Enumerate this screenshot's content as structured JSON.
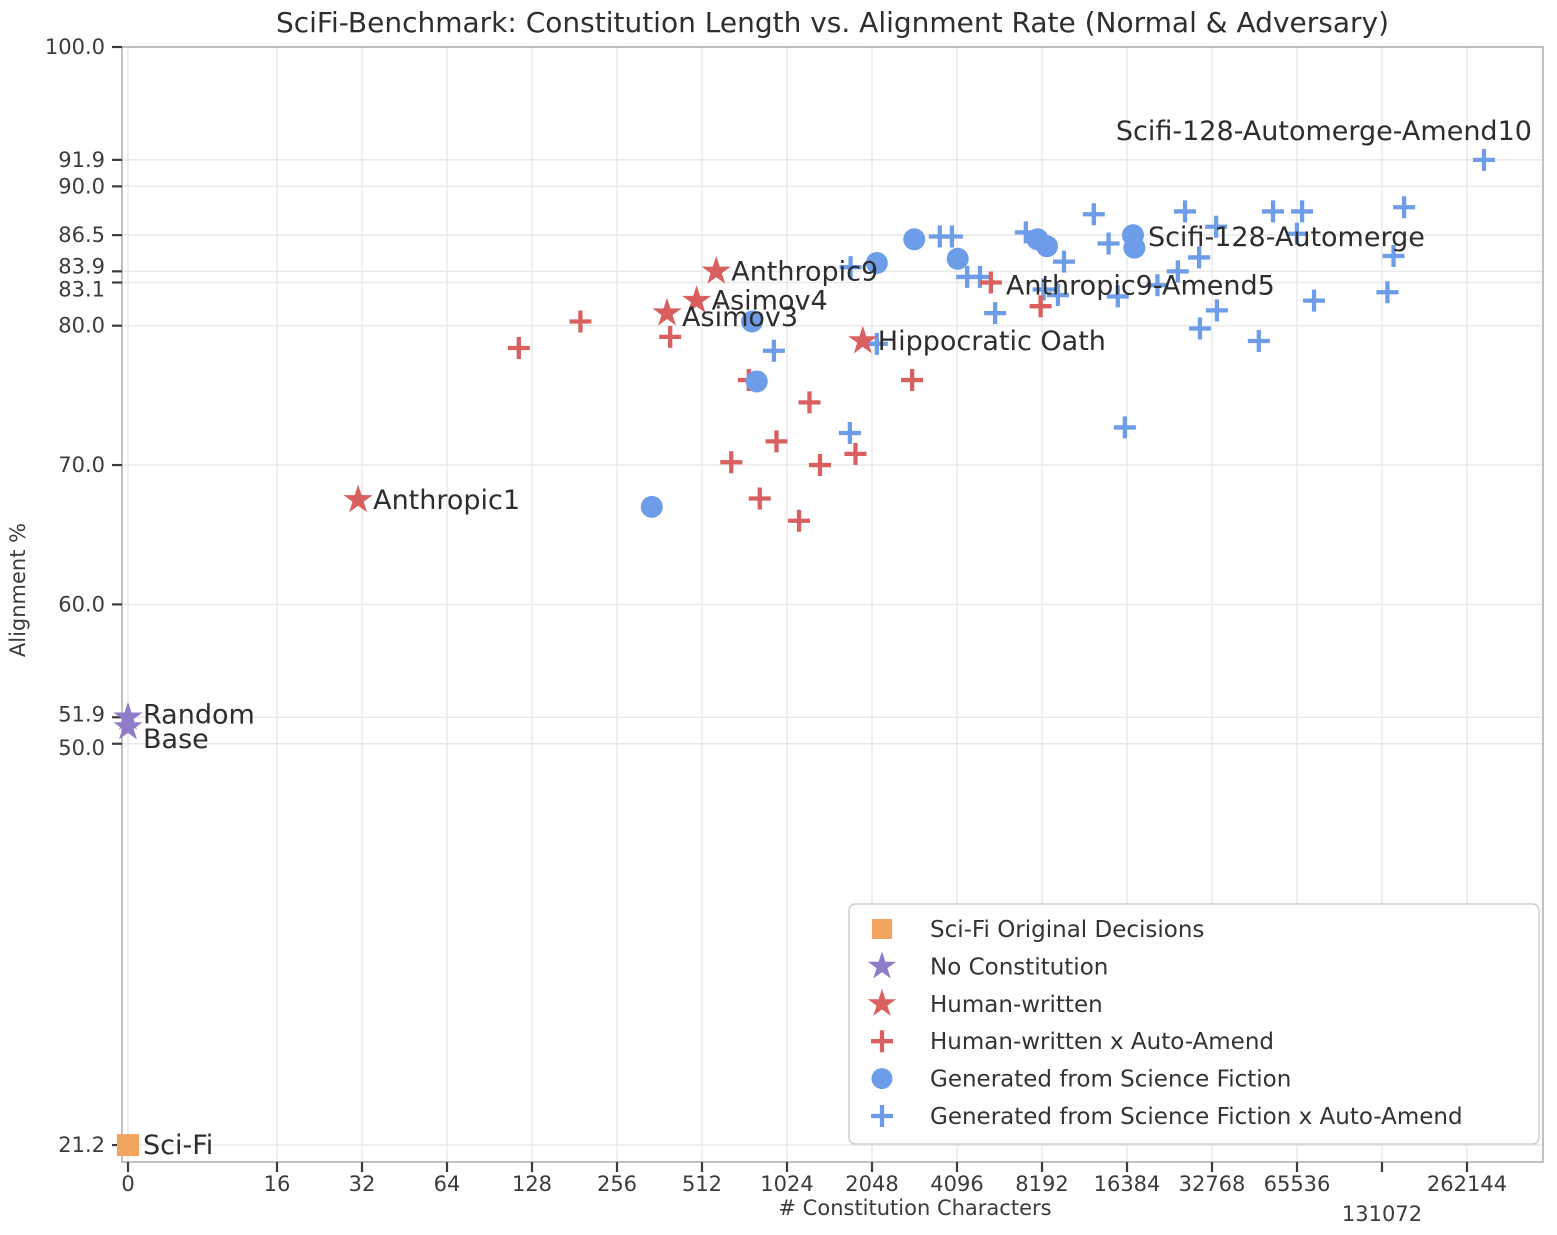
{
  "chart_data": {
    "type": "scatter",
    "title": "SciFi-Benchmark: Constitution Length vs. Alignment Rate (Normal & Adversary)",
    "xlabel": "# Constitution Characters",
    "ylabel": "Alignment %",
    "x_scale": "log2 with zero origin",
    "grid": true,
    "legend_position": "lower right",
    "x_ticks": [
      {
        "v": 0,
        "label": "0",
        "row": 0
      },
      {
        "v": 16,
        "label": "16",
        "row": 0
      },
      {
        "v": 32,
        "label": "32",
        "row": 0
      },
      {
        "v": 64,
        "label": "64",
        "row": 0
      },
      {
        "v": 128,
        "label": "128",
        "row": 0
      },
      {
        "v": 256,
        "label": "256",
        "row": 0
      },
      {
        "v": 512,
        "label": "512",
        "row": 0
      },
      {
        "v": 1024,
        "label": "1024",
        "row": 0
      },
      {
        "v": 2048,
        "label": "2048",
        "row": 0
      },
      {
        "v": 4096,
        "label": "4096",
        "row": 0
      },
      {
        "v": 8192,
        "label": "8192",
        "row": 0
      },
      {
        "v": 16384,
        "label": "16384",
        "row": 0
      },
      {
        "v": 32768,
        "label": "32768",
        "row": 0
      },
      {
        "v": 65536,
        "label": "65536",
        "row": 0
      },
      {
        "v": 131072,
        "label": "131072",
        "row": 1
      },
      {
        "v": 262144,
        "label": "262144",
        "row": 0
      }
    ],
    "y_ticks": [
      {
        "v": 100.0,
        "label": "100.0",
        "nudge": 0
      },
      {
        "v": 91.9,
        "label": "91.9",
        "nudge": 0
      },
      {
        "v": 90.0,
        "label": "90.0",
        "nudge": 0
      },
      {
        "v": 86.5,
        "label": "86.5",
        "nudge": 0
      },
      {
        "v": 83.9,
        "label": "83.9",
        "nudge": -5
      },
      {
        "v": 83.1,
        "label": "83.1",
        "nudge": 7
      },
      {
        "v": 80.0,
        "label": "80.0",
        "nudge": 0
      },
      {
        "v": 70.0,
        "label": "70.0",
        "nudge": 0
      },
      {
        "v": 60.0,
        "label": "60.0",
        "nudge": 0
      },
      {
        "v": 51.9,
        "label": "51.9",
        "nudge": -3
      },
      {
        "v": 50.0,
        "label": "50.0",
        "nudge": 4
      },
      {
        "v": 21.2,
        "label": "21.2",
        "nudge": 0
      }
    ],
    "series": [
      {
        "name": "Sci-Fi Original Decisions",
        "marker": "square",
        "color": "#F2A35E",
        "points": [
          {
            "x": 0,
            "y": 21.2,
            "label": "Sci-Fi"
          }
        ]
      },
      {
        "name": "No Constitution",
        "marker": "star",
        "color": "#8F7CC9",
        "points": [
          {
            "x": 0,
            "y": 51.9,
            "label": "Random",
            "dy": -3
          },
          {
            "x": 0,
            "y": 51.2,
            "label": "Base",
            "dy": 12
          }
        ]
      },
      {
        "name": "Human-written",
        "marker": "star",
        "color": "#D9605F",
        "points": [
          {
            "x": 31,
            "y": 67.5,
            "label": "Anthropic1"
          },
          {
            "x": 385,
            "y": 80.9,
            "label": "Asimov3",
            "dy": 4
          },
          {
            "x": 490,
            "y": 81.8,
            "label": "Asimov4"
          },
          {
            "x": 575,
            "y": 83.9,
            "label": "Anthropic9"
          },
          {
            "x": 1900,
            "y": 78.9,
            "label": "Hippocratic Oath"
          }
        ]
      },
      {
        "name": "Human-written x Auto-Amend",
        "marker": "plus",
        "color": "#D9605F",
        "points": [
          {
            "x": 115,
            "y": 78.4
          },
          {
            "x": 190,
            "y": 80.3
          },
          {
            "x": 395,
            "y": 79.2
          },
          {
            "x": 650,
            "y": 70.2
          },
          {
            "x": 750,
            "y": 76.1
          },
          {
            "x": 820,
            "y": 67.6
          },
          {
            "x": 940,
            "y": 71.7
          },
          {
            "x": 1130,
            "y": 66.0
          },
          {
            "x": 1230,
            "y": 74.5
          },
          {
            "x": 1340,
            "y": 70.0
          },
          {
            "x": 1790,
            "y": 70.8
          },
          {
            "x": 2840,
            "y": 76.1
          },
          {
            "x": 5400,
            "y": 83.1,
            "label": "Anthropic9-Amend5",
            "dy": 3
          },
          {
            "x": 8100,
            "y": 81.4
          }
        ]
      },
      {
        "name": "Generated from Science Fiction",
        "marker": "circle",
        "color": "#6D9CE8",
        "points": [
          {
            "x": 340,
            "y": 67.0
          },
          {
            "x": 770,
            "y": 80.3
          },
          {
            "x": 800,
            "y": 76.0
          },
          {
            "x": 2130,
            "y": 84.5
          },
          {
            "x": 2890,
            "y": 86.2
          },
          {
            "x": 4120,
            "y": 84.8
          },
          {
            "x": 7900,
            "y": 86.2
          },
          {
            "x": 8530,
            "y": 85.7
          },
          {
            "x": 17200,
            "y": 86.5,
            "label": "Scifi-128-Automerge",
            "dy": 2
          },
          {
            "x": 17400,
            "y": 85.6
          }
        ]
      },
      {
        "name": "Generated from Science Fiction x Auto-Amend",
        "marker": "plus",
        "color": "#6D9CE8",
        "points": [
          {
            "x": 920,
            "y": 78.2
          },
          {
            "x": 1710,
            "y": 72.3
          },
          {
            "x": 1720,
            "y": 84.2
          },
          {
            "x": 2130,
            "y": 78.7
          },
          {
            "x": 3560,
            "y": 86.4
          },
          {
            "x": 3930,
            "y": 86.4
          },
          {
            "x": 4450,
            "y": 83.5
          },
          {
            "x": 4940,
            "y": 83.5
          },
          {
            "x": 5590,
            "y": 80.9
          },
          {
            "x": 7180,
            "y": 86.7
          },
          {
            "x": 8300,
            "y": 82.6
          },
          {
            "x": 9330,
            "y": 82.2
          },
          {
            "x": 9800,
            "y": 84.6
          },
          {
            "x": 12500,
            "y": 88.0
          },
          {
            "x": 14100,
            "y": 85.9
          },
          {
            "x": 15200,
            "y": 82.1
          },
          {
            "x": 16100,
            "y": 72.7
          },
          {
            "x": 21000,
            "y": 82.9
          },
          {
            "x": 24800,
            "y": 83.9
          },
          {
            "x": 26300,
            "y": 88.2
          },
          {
            "x": 29500,
            "y": 84.9
          },
          {
            "x": 29700,
            "y": 79.8
          },
          {
            "x": 33900,
            "y": 87.1
          },
          {
            "x": 34100,
            "y": 81.1
          },
          {
            "x": 48000,
            "y": 78.9
          },
          {
            "x": 53900,
            "y": 88.2
          },
          {
            "x": 65500,
            "y": 86.6
          },
          {
            "x": 68300,
            "y": 88.2
          },
          {
            "x": 75300,
            "y": 81.8
          },
          {
            "x": 137000,
            "y": 82.4
          },
          {
            "x": 144000,
            "y": 85.0
          },
          {
            "x": 157000,
            "y": 88.5
          },
          {
            "x": 301000,
            "y": 91.9,
            "label": "Scifi-128-Automerge-Amend10",
            "anchor": "end",
            "dx": 48,
            "dy": -29
          }
        ]
      }
    ],
    "legend": {
      "items": [
        {
          "label": "Sci-Fi Original Decisions",
          "marker": "square",
          "color": "#F2A35E"
        },
        {
          "label": "No Constitution",
          "marker": "star",
          "color": "#8F7CC9"
        },
        {
          "label": "Human-written",
          "marker": "star",
          "color": "#D9605F"
        },
        {
          "label": "Human-written x Auto-Amend",
          "marker": "plus",
          "color": "#D9605F"
        },
        {
          "label": "Generated from Science Fiction",
          "marker": "circle",
          "color": "#6D9CE8"
        },
        {
          "label": "Generated from Science Fiction x Auto-Amend",
          "marker": "plus",
          "color": "#6D9CE8"
        }
      ]
    },
    "colors": {
      "grid": "#E8E8E8",
      "spine": "#B2B2B2",
      "tick": "#3B3B3B",
      "tick_text": "#3B3B3B",
      "annotation_text": "#2D2D2D",
      "legend_border": "#CFCFCF",
      "legend_text": "#333333"
    }
  }
}
